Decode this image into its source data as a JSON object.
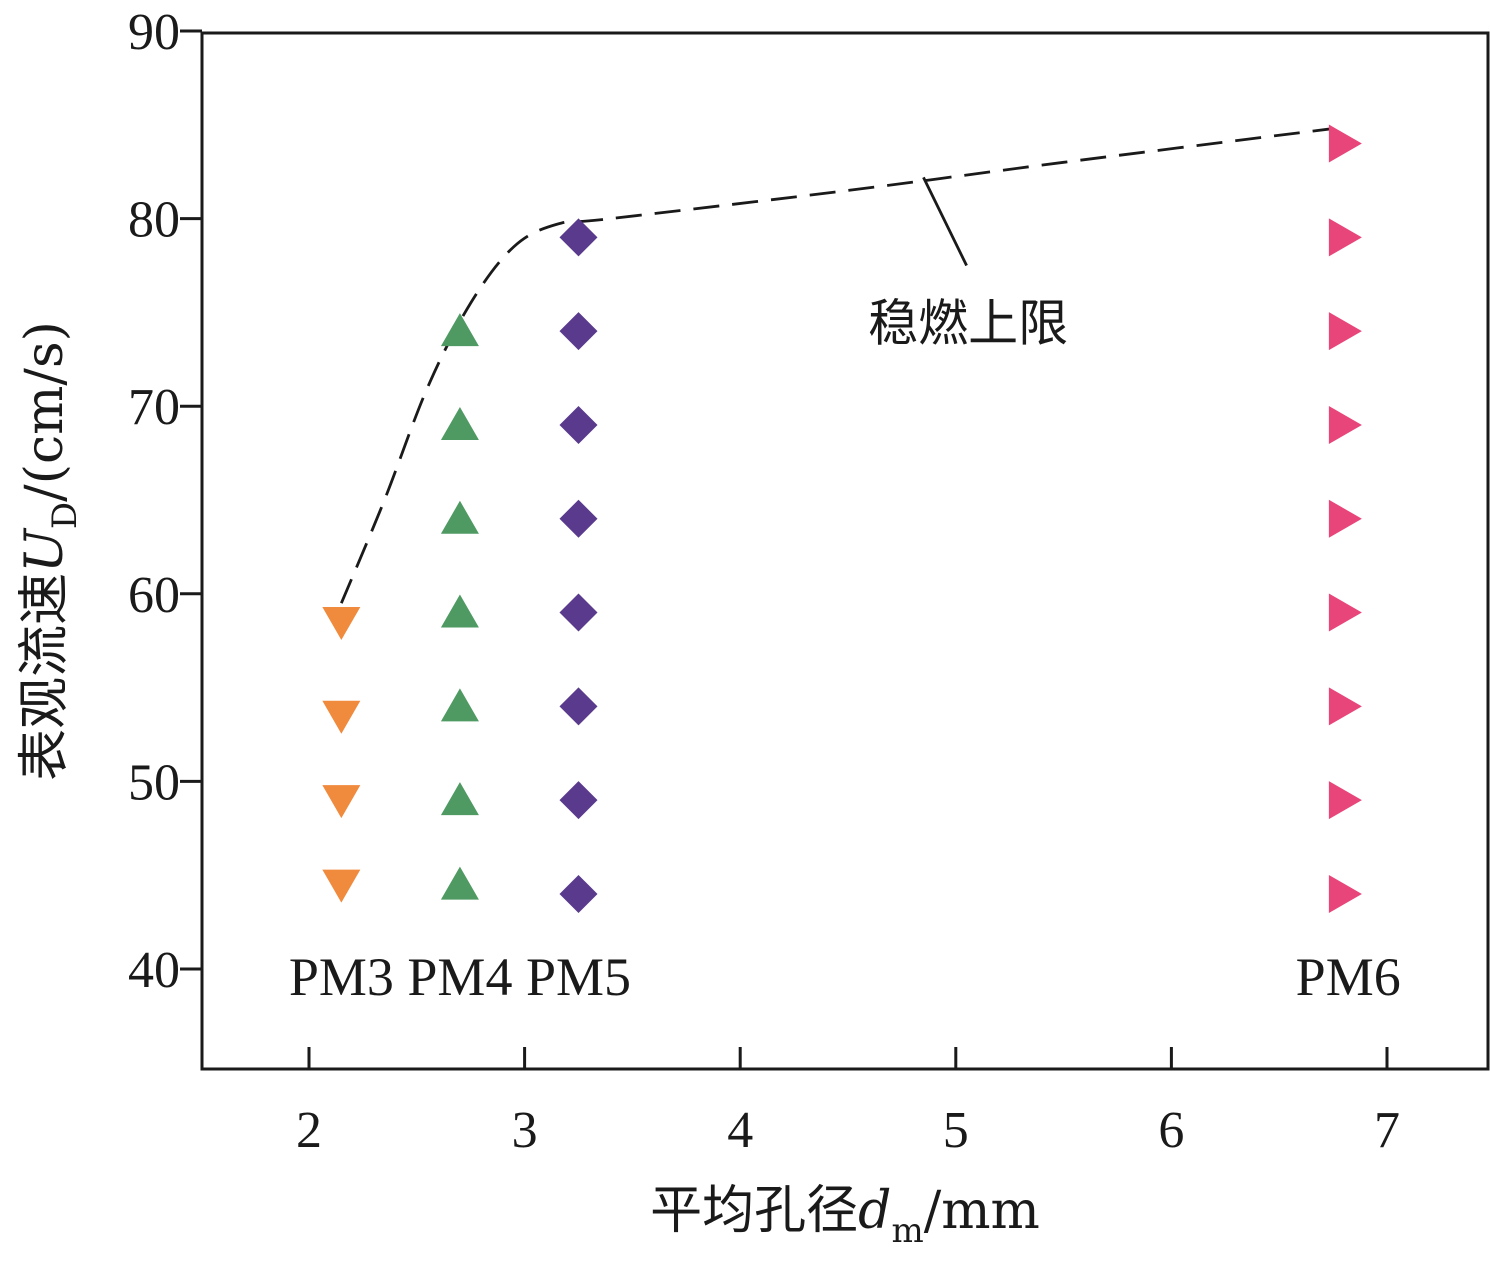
{
  "chart_data": {
    "type": "scatter",
    "xlabel": {
      "main": "平均孔径",
      "var": "d",
      "sub": "m",
      "unit": "/mm"
    },
    "ylabel": {
      "main": "表观流速",
      "var": "U",
      "sub": "D",
      "unit": "/(cm/s)"
    },
    "xlim": [
      1.5,
      7.5
    ],
    "ylim": [
      35,
      90
    ],
    "xticks": [
      2,
      3,
      4,
      5,
      6,
      7
    ],
    "yticks": [
      40,
      50,
      60,
      70,
      80,
      90
    ],
    "series": [
      {
        "name": "PM3",
        "marker": "triangle-down",
        "color": "#f08a3c",
        "points": [
          [
            2.15,
            44.5
          ],
          [
            2.15,
            49
          ],
          [
            2.15,
            53.5
          ],
          [
            2.15,
            58.5
          ]
        ]
      },
      {
        "name": "PM4",
        "marker": "triangle-up",
        "color": "#4e9a62",
        "points": [
          [
            2.7,
            44.5
          ],
          [
            2.7,
            49
          ],
          [
            2.7,
            54
          ],
          [
            2.7,
            59
          ],
          [
            2.7,
            64
          ],
          [
            2.7,
            69
          ],
          [
            2.7,
            74
          ]
        ]
      },
      {
        "name": "PM5",
        "marker": "diamond",
        "color": "#5a3a8c",
        "points": [
          [
            3.25,
            44
          ],
          [
            3.25,
            49
          ],
          [
            3.25,
            54
          ],
          [
            3.25,
            59
          ],
          [
            3.25,
            64
          ],
          [
            3.25,
            69
          ],
          [
            3.25,
            74
          ],
          [
            3.25,
            79
          ]
        ]
      },
      {
        "name": "PM6",
        "marker": "triangle-right",
        "color": "#e8457a",
        "points": [
          [
            6.8,
            44
          ],
          [
            6.8,
            49
          ],
          [
            6.8,
            54
          ],
          [
            6.8,
            59
          ],
          [
            6.8,
            64
          ],
          [
            6.8,
            69
          ],
          [
            6.8,
            74
          ],
          [
            6.8,
            79
          ],
          [
            6.8,
            84
          ]
        ]
      }
    ],
    "group_labels": [
      {
        "text": "PM3",
        "x": 2.15,
        "y": 40
      },
      {
        "text": "PM4",
        "x": 2.7,
        "y": 40
      },
      {
        "text": "PM5",
        "x": 3.25,
        "y": 40
      },
      {
        "text": "PM6",
        "x": 6.82,
        "y": 40
      }
    ],
    "limit_curve": {
      "name": "稳燃上限",
      "style": "dashed",
      "points": [
        [
          2.15,
          59.5
        ],
        [
          2.35,
          65
        ],
        [
          2.55,
          71
        ],
        [
          2.75,
          75.5
        ],
        [
          2.95,
          78.5
        ],
        [
          3.15,
          79.7
        ],
        [
          3.4,
          80
        ],
        [
          4.5,
          81.5
        ],
        [
          5.5,
          83
        ],
        [
          6.75,
          84.8
        ]
      ]
    },
    "annotation": {
      "text": "稳燃上限",
      "pointer_from": [
        5.05,
        77.5
      ],
      "pointer_to": [
        4.85,
        82.2
      ],
      "text_at": [
        5.15,
        73.5
      ]
    }
  }
}
